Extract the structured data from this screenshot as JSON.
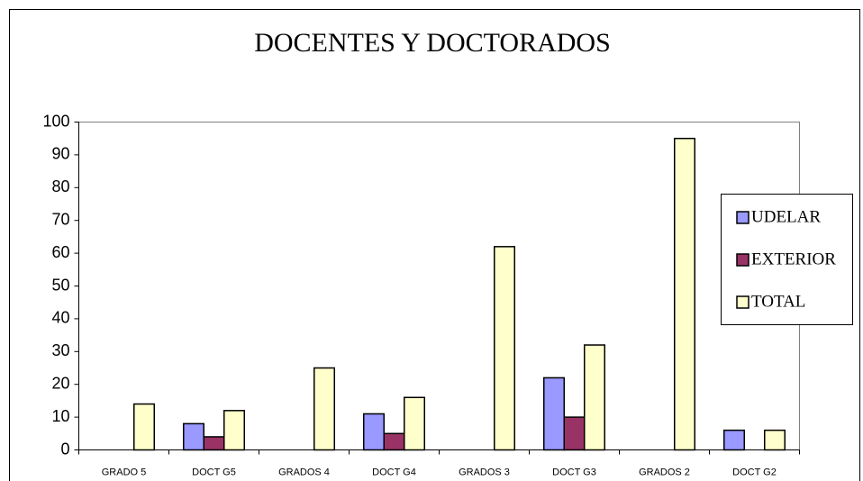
{
  "chart_data": {
    "type": "bar",
    "title": "DOCENTES Y DOCTORADOS",
    "categories": [
      "GRADO 5",
      "DOCT G5",
      "GRADOS 4",
      "DOCT G4",
      "GRADOS 3",
      "DOCT G3",
      "GRADOS 2",
      "DOCT G2"
    ],
    "series": [
      {
        "name": "UDELAR",
        "color": "#9999ff",
        "values": [
          null,
          8,
          null,
          11,
          null,
          22,
          null,
          6
        ]
      },
      {
        "name": "EXTERIOR",
        "color": "#993366",
        "values": [
          null,
          4,
          null,
          5,
          null,
          10,
          null,
          0
        ]
      },
      {
        "name": "TOTAL",
        "color": "#ffffcc",
        "values": [
          14,
          12,
          25,
          16,
          62,
          32,
          95,
          6
        ]
      }
    ],
    "ylim": [
      0,
      100
    ],
    "yticks": [
      0,
      10,
      20,
      30,
      40,
      50,
      60,
      70,
      80,
      90,
      100
    ],
    "grid": false,
    "legend": "right"
  }
}
